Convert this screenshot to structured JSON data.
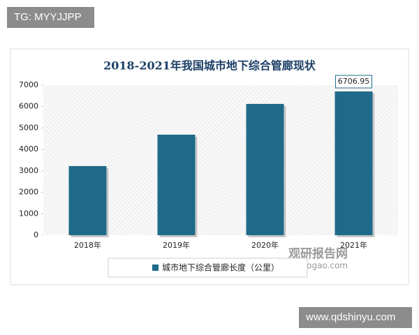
{
  "header": {
    "badge": "TG: MYYJJPP"
  },
  "footer": {
    "badge": "www.qdshinyu.com"
  },
  "chart_data": {
    "type": "bar",
    "title": "2018-2021年我国城市地下综合管廊现状",
    "categories": [
      "2018年",
      "2019年",
      "2020年",
      "2021年"
    ],
    "series": [
      {
        "name": "城市地下综合管廊长度（公里）",
        "color": "#1f6a8a",
        "values": [
          3225,
          4690,
          6125,
          6706.95
        ],
        "value_labels": [
          null,
          null,
          null,
          "6706.95"
        ]
      }
    ],
    "ylim": [
      0,
      7000
    ],
    "yticks": [
      0,
      1000,
      2000,
      3000,
      4000,
      5000,
      6000,
      7000
    ],
    "legend": "bottom",
    "watermark": {
      "name": "观研报告网",
      "site": "chinabaogao.com"
    }
  }
}
